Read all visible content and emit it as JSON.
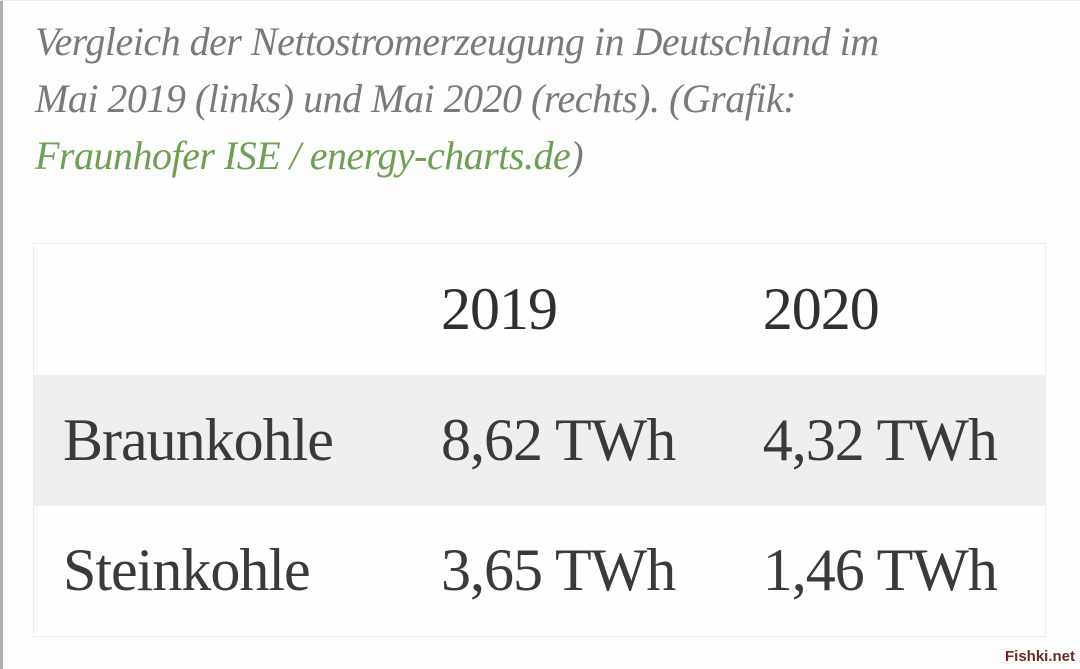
{
  "page": {
    "background": "#fdfdfd",
    "left_edge_color": "#b1b1b1",
    "watermark": "Fishki.net",
    "watermark_color": "#6b2929"
  },
  "caption": {
    "line1": "Vergleich der Nettostromerzeugung in Deutschland im",
    "line2": "Mai 2019 (links) und Mai 2020 (rechts). (Grafik:",
    "link_text": "Fraunhofer ISE / energy-charts.de",
    "suffix": ")",
    "text_color": "#797a7c",
    "link_color": "#6f9f55"
  },
  "chart_data": {
    "type": "table",
    "title": "Vergleich der Nettostromerzeugung in Deutschland im Mai 2019 (links) und Mai 2020 (rechts)",
    "source": "Fraunhofer ISE / energy-charts.de",
    "unit": "TWh",
    "columns": [
      "",
      "2019",
      "2020"
    ],
    "rows": [
      [
        "Braunkohle",
        "8,62 TWh",
        "4,32 TWh"
      ],
      [
        "Steinkohle",
        "3,65 TWh",
        "1,46 TWh"
      ]
    ],
    "categories": [
      "Braunkohle",
      "Steinkohle"
    ],
    "series": [
      {
        "name": "2019",
        "values": [
          8.62,
          3.65
        ]
      },
      {
        "name": "2020",
        "values": [
          4.32,
          1.46
        ]
      }
    ],
    "stripe_color": "#efefef",
    "text_color": "#3a3a3a"
  }
}
